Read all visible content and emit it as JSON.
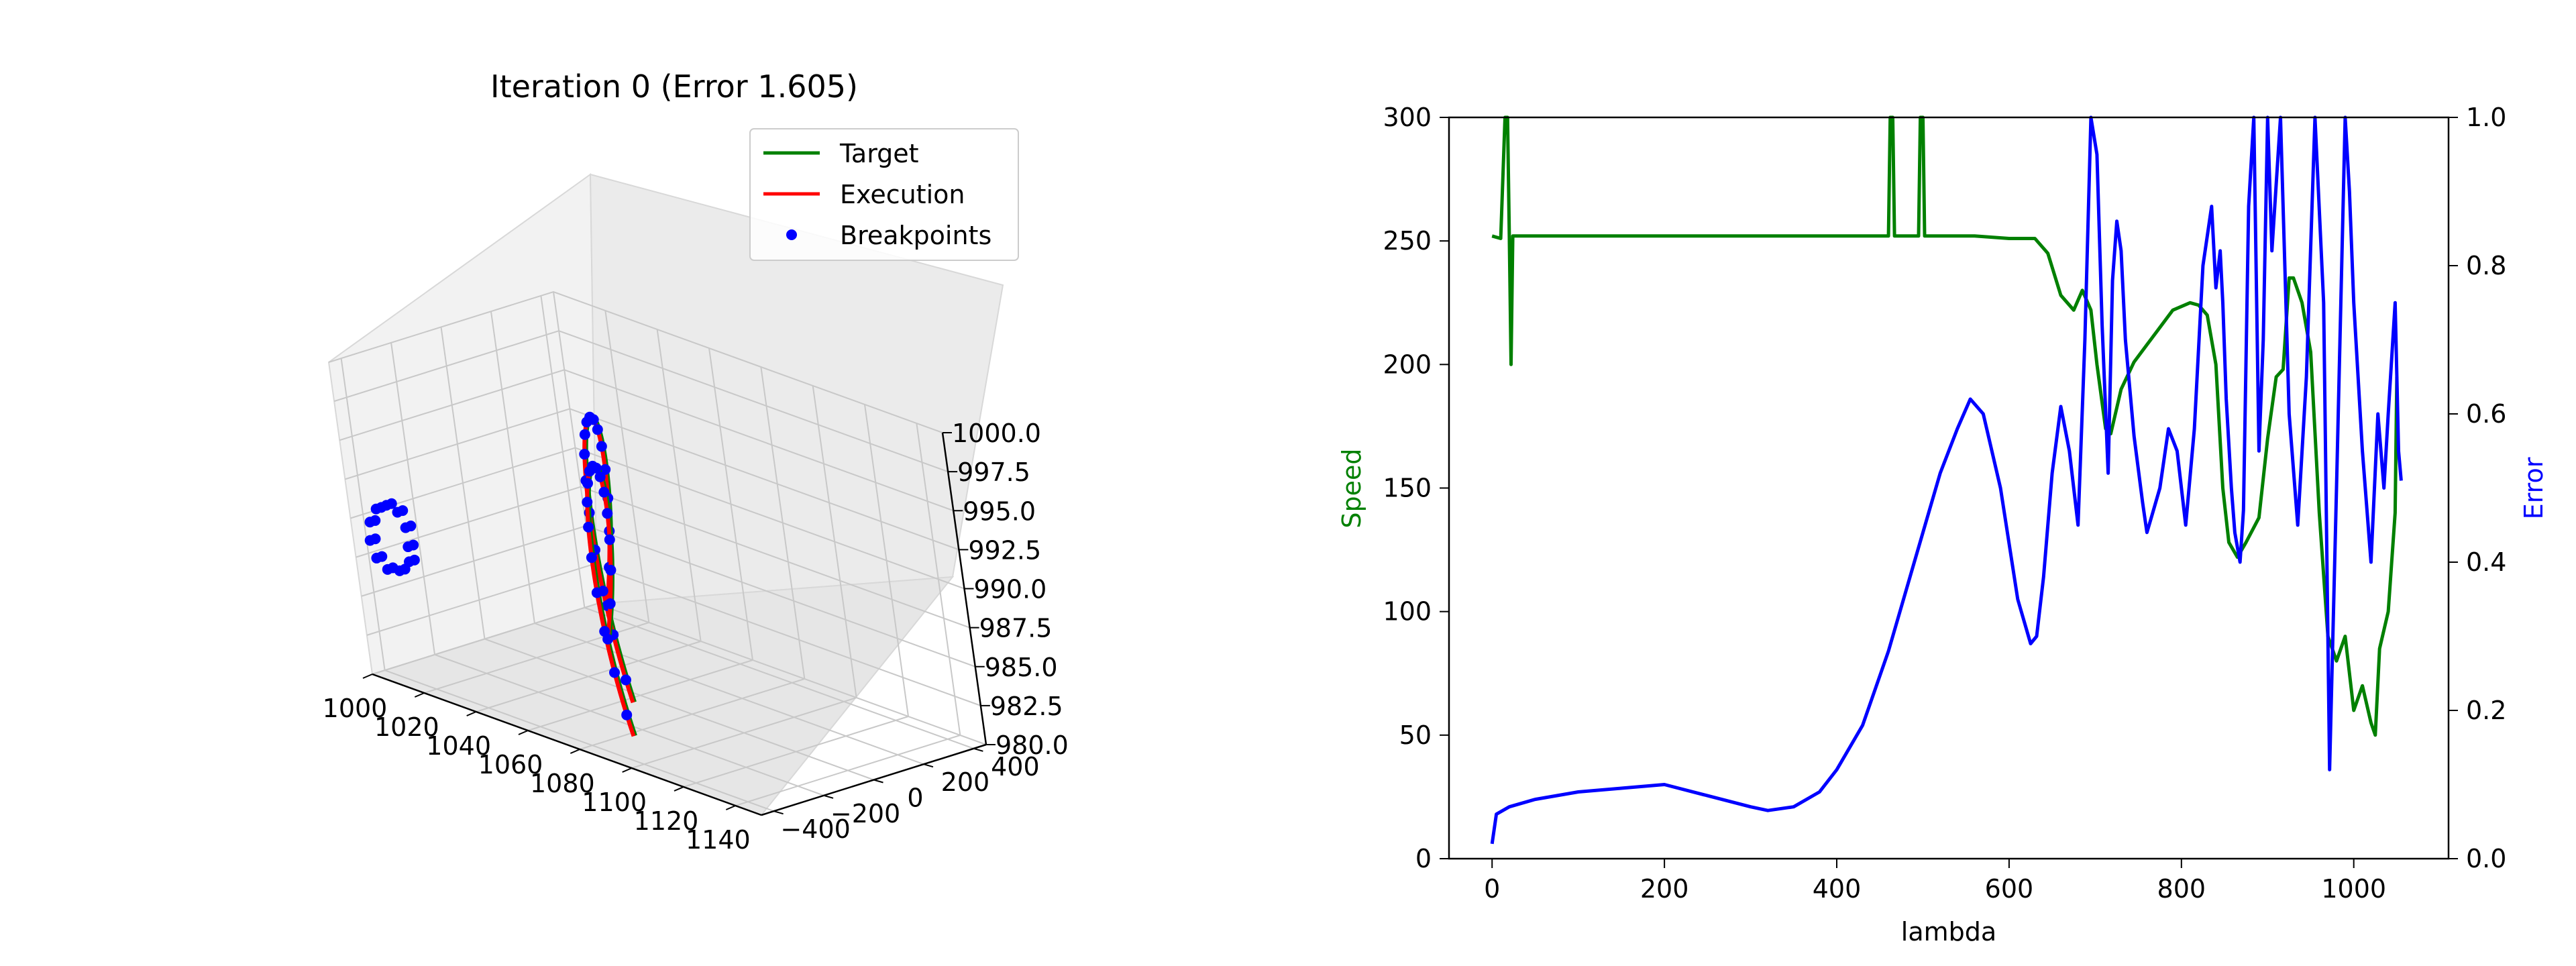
{
  "chart_data": [
    {
      "type": "line3d",
      "title": "Iteration 0 (Error 1.605)",
      "legend": {
        "position": "top-right",
        "entries": [
          {
            "label": "Target",
            "color": "#008000",
            "marker": "line"
          },
          {
            "label": "Execution",
            "color": "#ff0000",
            "marker": "line"
          },
          {
            "label": "Breakpoints",
            "color": "#0000ff",
            "marker": "dot"
          }
        ]
      },
      "x_axis": {
        "label": "",
        "ticks": [
          "1000",
          "1020",
          "1040",
          "1060",
          "1080",
          "1100",
          "1120",
          "1140"
        ],
        "range": [
          1000,
          1150
        ]
      },
      "y_axis": {
        "label": "",
        "ticks": [
          "400",
          "200",
          "0",
          "−200",
          "−400"
        ],
        "range": [
          -450,
          450
        ]
      },
      "z_axis": {
        "label": "",
        "ticks": [
          "1000.0",
          "997.5",
          "995.0",
          "992.5",
          "990.0",
          "987.5",
          "985.0",
          "982.5",
          "980.0"
        ],
        "range": [
          980,
          1000
        ]
      },
      "grid": true,
      "series": [
        {
          "name": "Target",
          "color": "#008000"
        },
        {
          "name": "Execution",
          "color": "#ff0000"
        },
        {
          "name": "Breakpoints",
          "color": "#0000ff"
        }
      ]
    },
    {
      "type": "line",
      "title": "",
      "xlabel": "lambda",
      "ylabel_left": "Speed",
      "ylabel_right": "Error",
      "xlim": [
        -50,
        1110
      ],
      "ylim_left": [
        0,
        300
      ],
      "ylim_right": [
        0,
        1.0
      ],
      "x_ticks": [
        "0",
        "200",
        "400",
        "600",
        "800",
        "1000"
      ],
      "y_left_ticks": [
        "0",
        "50",
        "100",
        "150",
        "200",
        "250",
        "300"
      ],
      "y_right_ticks": [
        "0.0",
        "0.2",
        "0.4",
        "0.6",
        "0.8",
        "1.0"
      ],
      "series": [
        {
          "name": "Speed",
          "axis": "left",
          "color": "#008000",
          "points": [
            [
              0,
              252
            ],
            [
              10,
              251
            ],
            [
              15,
              300
            ],
            [
              18,
              300
            ],
            [
              20,
              252
            ],
            [
              22,
              200
            ],
            [
              24,
              252
            ],
            [
              100,
              252
            ],
            [
              200,
              252
            ],
            [
              300,
              252
            ],
            [
              400,
              252
            ],
            [
              460,
              252
            ],
            [
              462,
              300
            ],
            [
              465,
              300
            ],
            [
              467,
              252
            ],
            [
              495,
              252
            ],
            [
              497,
              300
            ],
            [
              500,
              300
            ],
            [
              502,
              252
            ],
            [
              560,
              252
            ],
            [
              600,
              251
            ],
            [
              630,
              251
            ],
            [
              645,
              245
            ],
            [
              660,
              228
            ],
            [
              675,
              222
            ],
            [
              685,
              230
            ],
            [
              695,
              222
            ],
            [
              702,
              200
            ],
            [
              712,
              174
            ],
            [
              718,
              172
            ],
            [
              730,
              190
            ],
            [
              745,
              201
            ],
            [
              760,
              208
            ],
            [
              775,
              215
            ],
            [
              790,
              222
            ],
            [
              810,
              225
            ],
            [
              820,
              224
            ],
            [
              830,
              220
            ],
            [
              840,
              200
            ],
            [
              848,
              150
            ],
            [
              855,
              128
            ],
            [
              865,
              122
            ],
            [
              875,
              128
            ],
            [
              890,
              138
            ],
            [
              900,
              170
            ],
            [
              910,
              195
            ],
            [
              918,
              198
            ],
            [
              925,
              235
            ],
            [
              930,
              235
            ],
            [
              935,
              230
            ],
            [
              940,
              225
            ],
            [
              950,
              205
            ],
            [
              960,
              140
            ],
            [
              970,
              90
            ],
            [
              980,
              80
            ],
            [
              990,
              90
            ],
            [
              1000,
              60
            ],
            [
              1010,
              70
            ],
            [
              1020,
              55
            ],
            [
              1025,
              50
            ],
            [
              1030,
              85
            ],
            [
              1040,
              100
            ],
            [
              1048,
              140
            ],
            [
              1050,
              195
            ]
          ]
        },
        {
          "name": "Error",
          "axis": "right",
          "color": "#0000ff",
          "points": [
            [
              0,
              0.02
            ],
            [
              5,
              0.06
            ],
            [
              20,
              0.07
            ],
            [
              50,
              0.08
            ],
            [
              100,
              0.09
            ],
            [
              150,
              0.095
            ],
            [
              200,
              0.1
            ],
            [
              250,
              0.085
            ],
            [
              300,
              0.07
            ],
            [
              320,
              0.065
            ],
            [
              350,
              0.07
            ],
            [
              380,
              0.09
            ],
            [
              400,
              0.12
            ],
            [
              430,
              0.18
            ],
            [
              460,
              0.28
            ],
            [
              490,
              0.4
            ],
            [
              520,
              0.52
            ],
            [
              540,
              0.58
            ],
            [
              555,
              0.62
            ],
            [
              570,
              0.6
            ],
            [
              590,
              0.5
            ],
            [
              610,
              0.35
            ],
            [
              625,
              0.29
            ],
            [
              632,
              0.3
            ],
            [
              640,
              0.38
            ],
            [
              650,
              0.52
            ],
            [
              660,
              0.61
            ],
            [
              670,
              0.55
            ],
            [
              680,
              0.45
            ],
            [
              688,
              0.7
            ],
            [
              695,
              1.0
            ],
            [
              702,
              0.95
            ],
            [
              708,
              0.72
            ],
            [
              715,
              0.52
            ],
            [
              720,
              0.78
            ],
            [
              725,
              0.86
            ],
            [
              730,
              0.82
            ],
            [
              735,
              0.7
            ],
            [
              745,
              0.57
            ],
            [
              755,
              0.48
            ],
            [
              760,
              0.44
            ],
            [
              765,
              0.46
            ],
            [
              775,
              0.5
            ],
            [
              785,
              0.58
            ],
            [
              795,
              0.55
            ],
            [
              805,
              0.45
            ],
            [
              815,
              0.58
            ],
            [
              825,
              0.8
            ],
            [
              835,
              0.88
            ],
            [
              840,
              0.77
            ],
            [
              845,
              0.82
            ],
            [
              848,
              0.75
            ],
            [
              852,
              0.62
            ],
            [
              858,
              0.5
            ],
            [
              862,
              0.44
            ],
            [
              868,
              0.4
            ],
            [
              872,
              0.47
            ],
            [
              878,
              0.88
            ],
            [
              884,
              1.0
            ],
            [
              890,
              0.55
            ],
            [
              895,
              0.7
            ],
            [
              900,
              1.0
            ],
            [
              905,
              0.82
            ],
            [
              915,
              1.0
            ],
            [
              925,
              0.6
            ],
            [
              935,
              0.45
            ],
            [
              945,
              0.65
            ],
            [
              955,
              1.0
            ],
            [
              965,
              0.75
            ],
            [
              972,
              0.12
            ],
            [
              980,
              0.5
            ],
            [
              990,
              1.0
            ],
            [
              995,
              0.9
            ],
            [
              1000,
              0.75
            ],
            [
              1010,
              0.55
            ],
            [
              1020,
              0.4
            ],
            [
              1028,
              0.6
            ],
            [
              1035,
              0.5
            ],
            [
              1040,
              0.6
            ],
            [
              1048,
              0.75
            ],
            [
              1052,
              0.55
            ],
            [
              1055,
              0.51
            ]
          ]
        }
      ]
    }
  ]
}
